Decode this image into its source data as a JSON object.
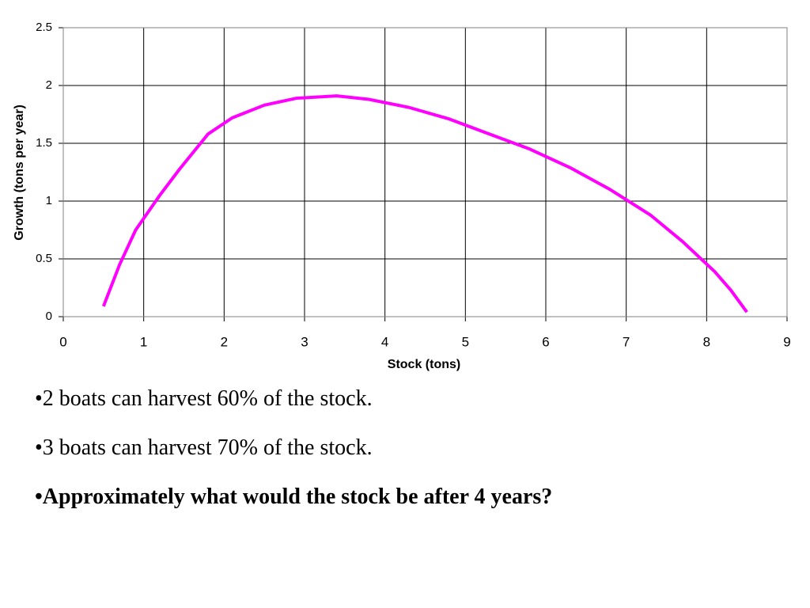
{
  "chart_data": {
    "type": "line",
    "x_label": "Stock (tons)",
    "y_label": "Growth (tons per year)",
    "x": [
      0.5,
      0.7,
      0.9,
      1.2,
      1.45,
      1.8,
      2.1,
      2.5,
      2.9,
      3.4,
      3.8,
      4.3,
      4.8,
      5.3,
      5.8,
      6.3,
      6.8,
      7.3,
      7.7,
      8.1,
      8.3,
      8.5
    ],
    "values": [
      0.09,
      0.45,
      0.75,
      1.05,
      1.28,
      1.58,
      1.72,
      1.83,
      1.89,
      1.91,
      1.88,
      1.81,
      1.71,
      1.58,
      1.45,
      1.29,
      1.1,
      0.88,
      0.65,
      0.39,
      0.23,
      0.04
    ],
    "color": "#ff00ff",
    "xlim": [
      0,
      9
    ],
    "xticks": [
      0,
      1,
      2,
      3,
      4,
      5,
      6,
      7,
      8,
      9
    ],
    "ylim": [
      0,
      2.5
    ],
    "yticks": [
      0,
      0.5,
      1,
      1.5,
      2,
      2.5
    ],
    "grid": true
  },
  "bullets": [
    "•2 boats can harvest 60% of the stock.",
    "•3 boats can harvest 70% of the stock.",
    "•Approximately what would the stock be after 4 years?"
  ]
}
